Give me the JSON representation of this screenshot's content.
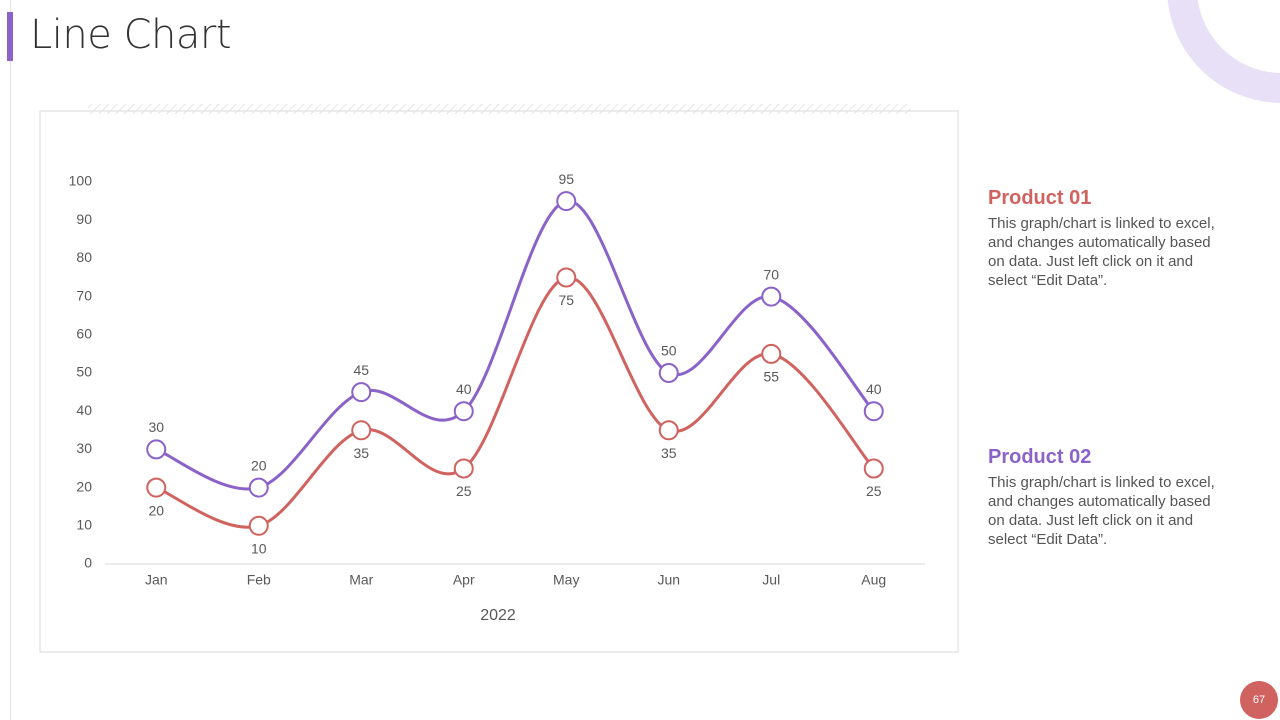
{
  "slide_title": "Line Chart",
  "page_number": "67",
  "side_notes": [
    {
      "title": "Product 01",
      "text": "This graph/chart is linked to excel, and changes automatically based on data. Just left click on it and select “Edit Data”."
    },
    {
      "title": "Product 02",
      "text": "This graph/chart is linked to excel, and changes automatically based on data. Just left click on it and select “Edit Data”."
    }
  ],
  "chart_data": {
    "type": "line",
    "categories": [
      "Jan",
      "Feb",
      "Mar",
      "Apr",
      "May",
      "Jun",
      "Jul",
      "Aug"
    ],
    "x_label": "2022",
    "series": [
      {
        "name": "Product 01",
        "color": "#d0635f",
        "values": [
          20,
          10,
          35,
          25,
          75,
          35,
          55,
          25
        ]
      },
      {
        "name": "Product 02",
        "color": "#8a62c8",
        "values": [
          30,
          20,
          45,
          40,
          95,
          50,
          70,
          40
        ]
      }
    ],
    "ylim": [
      0,
      100
    ],
    "yticks": [
      0,
      10,
      20,
      30,
      40,
      50,
      60,
      70,
      80,
      90,
      100
    ],
    "grid": false,
    "smooth": true
  }
}
